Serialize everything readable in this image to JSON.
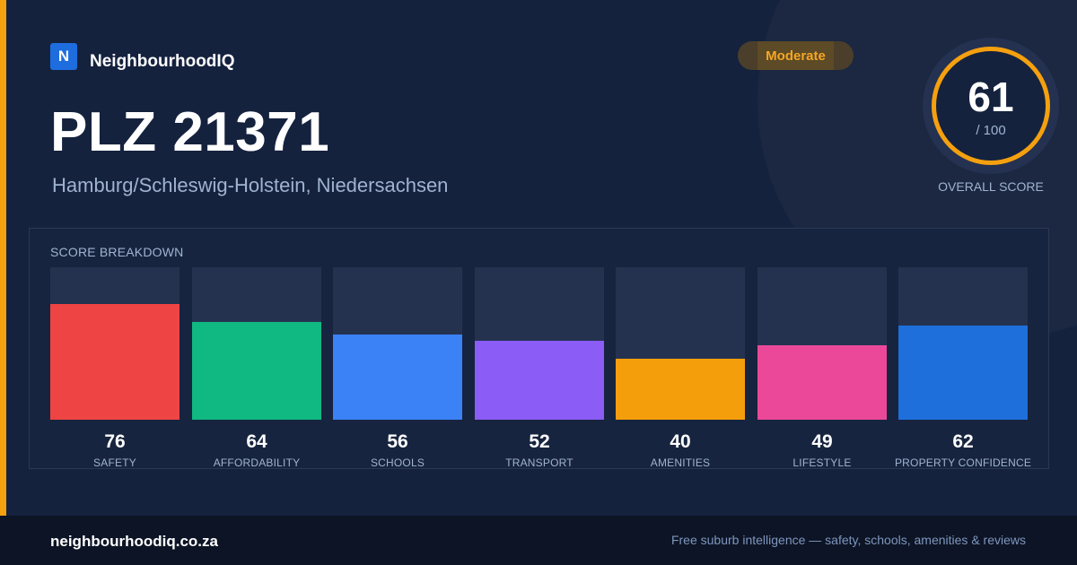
{
  "brand": {
    "logo_letter": "N",
    "name": "NeighbourhoodIQ"
  },
  "headline": "PLZ 21371",
  "subline": "Hamburg/Schleswig-Holstein, Niedersachsen",
  "badge": {
    "label": "Moderate",
    "color": "#f5a623"
  },
  "overall": {
    "score": "61",
    "out_of": "/ 100",
    "label": "OVERALL SCORE",
    "accent": "#f5a00f"
  },
  "breakdown": {
    "title": "SCORE BREAKDOWN",
    "max": 100,
    "items": [
      {
        "label": "SAFETY",
        "value": 76,
        "color": "#ef4444"
      },
      {
        "label": "AFFORDABILITY",
        "value": 64,
        "color": "#10b981"
      },
      {
        "label": "SCHOOLS",
        "value": 56,
        "color": "#3b82f6"
      },
      {
        "label": "TRANSPORT",
        "value": 52,
        "color": "#8b5cf6"
      },
      {
        "label": "AMENITIES",
        "value": 40,
        "color": "#f59e0b"
      },
      {
        "label": "LIFESTYLE",
        "value": 49,
        "color": "#ec4899"
      },
      {
        "label": "PROPERTY CONFIDENCE",
        "value": 62,
        "color": "#1e6fdc"
      }
    ]
  },
  "footer": {
    "url": "neighbourhoodiq.co.za",
    "tagline": "Free suburb intelligence — safety, schools, amenities & reviews"
  }
}
